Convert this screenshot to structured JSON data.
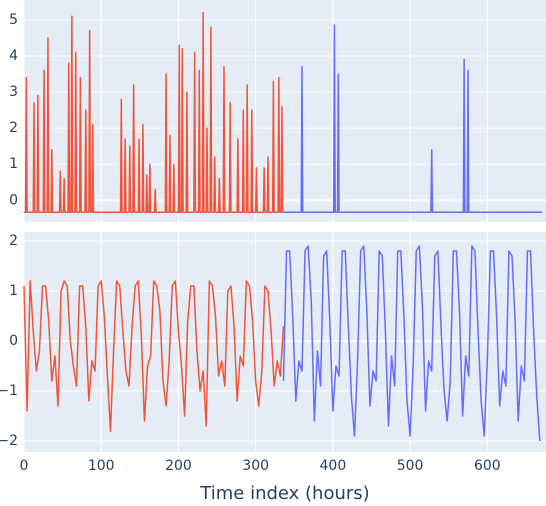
{
  "chart_data": [
    {
      "type": "line",
      "ylim": [
        -0.6,
        5.55
      ],
      "yticks": [
        0,
        1,
        2,
        3,
        4,
        5
      ],
      "xlim": [
        0,
        676
      ],
      "grid": true,
      "background": "#e5ecf6",
      "series": [
        {
          "color": "#ef553b",
          "x": [
            0,
            2,
            3,
            4,
            12,
            13,
            14,
            17,
            18,
            19,
            25,
            26,
            27,
            30,
            31,
            32,
            35,
            36,
            37,
            46,
            47,
            48,
            51,
            52,
            53,
            57,
            58,
            59,
            61,
            62,
            63,
            66,
            67,
            68,
            72,
            73,
            74,
            79,
            80,
            81,
            84,
            85,
            86,
            88,
            89,
            90,
            125,
            126,
            127,
            130,
            131,
            132,
            136,
            137,
            138,
            141,
            142,
            143,
            148,
            149,
            150,
            153,
            154,
            155,
            158,
            159,
            160,
            162,
            163,
            164,
            169,
            170,
            171,
            183,
            184,
            185,
            188,
            189,
            190,
            193,
            194,
            195,
            200,
            201,
            202,
            204,
            205,
            206,
            210,
            211,
            212,
            220,
            221,
            222,
            226,
            227,
            228,
            231,
            232,
            233,
            236,
            237,
            238,
            241,
            242,
            243,
            246,
            247,
            248,
            252,
            253,
            254,
            258,
            259,
            260,
            266,
            267,
            268,
            276,
            277,
            278,
            283,
            284,
            285,
            288,
            289,
            290,
            294,
            295,
            296,
            300,
            301,
            302,
            310,
            311,
            312,
            315,
            316,
            317,
            322,
            323,
            324,
            329,
            330,
            331,
            333,
            334,
            335,
            336
          ],
          "values": [
            -0.33,
            -0.33,
            3.4,
            -0.33,
            -0.33,
            2.7,
            -0.33,
            -0.33,
            2.9,
            -0.33,
            -0.33,
            3.6,
            -0.33,
            -0.33,
            4.5,
            -0.33,
            -0.33,
            1.4,
            -0.33,
            -0.33,
            0.8,
            -0.33,
            -0.33,
            0.6,
            -0.33,
            -0.33,
            3.8,
            -0.33,
            -0.33,
            5.1,
            -0.33,
            -0.33,
            4.1,
            -0.33,
            -0.33,
            3.4,
            -0.33,
            -0.33,
            2.5,
            -0.33,
            -0.33,
            4.7,
            -0.33,
            -0.33,
            2.1,
            -0.33,
            -0.33,
            2.8,
            -0.33,
            -0.33,
            1.7,
            -0.33,
            -0.33,
            1.5,
            -0.33,
            -0.33,
            3.2,
            -0.33,
            -0.33,
            1.7,
            -0.33,
            -0.33,
            2.1,
            -0.33,
            -0.33,
            0.7,
            -0.33,
            -0.33,
            1.0,
            -0.33,
            -0.33,
            0.3,
            -0.33,
            -0.33,
            3.5,
            -0.33,
            -0.33,
            1.8,
            -0.33,
            -0.33,
            1.0,
            -0.33,
            -0.33,
            4.3,
            -0.33,
            -0.33,
            4.2,
            -0.33,
            -0.33,
            3.0,
            -0.33,
            -0.33,
            4.1,
            -0.33,
            -0.33,
            3.6,
            -0.33,
            -0.33,
            5.2,
            -0.33,
            -0.33,
            2.0,
            -0.33,
            -0.33,
            4.8,
            -0.33,
            -0.33,
            1.2,
            -0.33,
            -0.33,
            0.6,
            -0.33,
            -0.33,
            3.7,
            -0.33,
            -0.33,
            2.7,
            -0.33,
            -0.33,
            1.7,
            -0.33,
            -0.33,
            2.5,
            -0.33,
            -0.33,
            3.2,
            -0.33,
            -0.33,
            2.5,
            -0.33,
            -0.33,
            0.9,
            -0.33,
            -0.33,
            0.9,
            -0.33,
            -0.33,
            1.2,
            -0.33,
            -0.33,
            3.3,
            -0.33,
            -0.33,
            3.4,
            -0.33,
            -0.33,
            2.6,
            -0.33,
            -0.33
          ]
        },
        {
          "color": "#636efa",
          "x": [
            336,
            359,
            360,
            361,
            401,
            402,
            403,
            406,
            407,
            408,
            527,
            528,
            529,
            569,
            570,
            571,
            574,
            575,
            576,
            671
          ],
          "values": [
            -0.33,
            -0.33,
            3.7,
            -0.33,
            -0.33,
            4.85,
            -0.33,
            -0.33,
            3.5,
            -0.33,
            -0.33,
            1.4,
            -0.33,
            -0.33,
            3.9,
            -0.33,
            -0.33,
            3.6,
            -0.33,
            -0.33
          ]
        }
      ]
    },
    {
      "type": "line",
      "ylim": [
        -2.22,
        2.18
      ],
      "yticks": [
        {
          "value": -2,
          "label": "−2"
        },
        {
          "value": -1,
          "label": "−1"
        },
        0,
        1,
        2
      ],
      "xlim": [
        0,
        676
      ],
      "xticks": [
        0,
        100,
        200,
        300,
        400,
        500,
        600
      ],
      "x_label": "Time index (hours)",
      "grid": true,
      "background": "#e5ecf6",
      "series": [
        {
          "color": "#ef553b",
          "x": [
            0,
            4,
            8,
            12,
            16,
            20,
            24,
            28,
            32,
            36,
            40,
            44,
            48,
            52,
            56,
            60,
            64,
            68,
            72,
            76,
            80,
            84,
            88,
            92,
            96,
            100,
            104,
            108,
            112,
            116,
            120,
            124,
            128,
            132,
            136,
            140,
            144,
            148,
            152,
            156,
            160,
            164,
            168,
            172,
            176,
            180,
            184,
            188,
            192,
            196,
            200,
            204,
            208,
            212,
            216,
            220,
            224,
            228,
            232,
            236,
            240,
            244,
            248,
            252,
            256,
            260,
            264,
            268,
            272,
            276,
            280,
            284,
            288,
            292,
            296,
            300,
            304,
            308,
            312,
            316,
            320,
            324,
            328,
            332,
            336
          ],
          "values": [
            1.1,
            -1.4,
            1.2,
            0.2,
            -0.6,
            -0.2,
            1.1,
            1.1,
            0.4,
            -0.8,
            -0.3,
            -1.3,
            1.0,
            1.2,
            1.1,
            0.0,
            -0.5,
            -0.9,
            1.1,
            1.1,
            0.3,
            -1.2,
            -0.4,
            -0.6,
            1.1,
            1.2,
            0.5,
            -0.7,
            -1.8,
            -0.2,
            1.2,
            1.1,
            0.2,
            -0.6,
            -0.9,
            0.3,
            1.1,
            1.2,
            0.1,
            -1.6,
            -0.5,
            -0.3,
            1.2,
            1.1,
            0.6,
            -0.8,
            -1.3,
            -0.4,
            1.1,
            1.2,
            0.2,
            -0.5,
            -1.5,
            0.4,
            1.1,
            1.1,
            -0.2,
            -1.0,
            -0.6,
            -1.7,
            1.2,
            1.1,
            0.5,
            -0.7,
            -0.4,
            -0.9,
            1.0,
            1.1,
            0.3,
            -1.2,
            -0.3,
            -0.5,
            1.2,
            1.1,
            0.4,
            -0.8,
            -1.3,
            -0.6,
            1.1,
            1.0,
            0.2,
            -0.9,
            -0.4,
            -0.7,
            0.3
          ]
        },
        {
          "color": "#636efa",
          "x": [
            336,
            340,
            344,
            348,
            352,
            356,
            360,
            364,
            368,
            372,
            376,
            380,
            384,
            388,
            392,
            396,
            400,
            404,
            408,
            412,
            416,
            420,
            424,
            428,
            432,
            436,
            440,
            444,
            448,
            452,
            456,
            460,
            464,
            468,
            472,
            476,
            480,
            484,
            488,
            492,
            496,
            500,
            504,
            508,
            512,
            516,
            520,
            524,
            528,
            532,
            536,
            540,
            544,
            548,
            552,
            556,
            560,
            564,
            568,
            572,
            576,
            580,
            584,
            588,
            592,
            596,
            600,
            604,
            608,
            612,
            616,
            620,
            624,
            628,
            632,
            636,
            640,
            644,
            648,
            652,
            656,
            660,
            664,
            668
          ],
          "values": [
            -0.8,
            1.8,
            1.8,
            0.5,
            -1.2,
            -0.4,
            -0.6,
            1.8,
            1.9,
            0.8,
            -1.6,
            -0.2,
            -0.9,
            1.7,
            1.8,
            0.4,
            -1.4,
            -0.5,
            -0.7,
            1.8,
            1.8,
            0.3,
            -1.1,
            -1.9,
            -0.4,
            1.8,
            1.9,
            0.6,
            -1.3,
            -0.6,
            -0.8,
            1.8,
            1.7,
            0.2,
            -1.7,
            -0.3,
            -0.9,
            1.8,
            1.8,
            0.5,
            -1.2,
            -1.9,
            -0.5,
            1.8,
            1.9,
            0.7,
            -1.4,
            -0.4,
            -0.6,
            1.7,
            1.8,
            0.3,
            -1.0,
            -1.6,
            -0.8,
            1.8,
            1.8,
            0.6,
            -1.5,
            -0.3,
            -0.7,
            1.9,
            1.8,
            0.2,
            -1.2,
            -1.9,
            -0.4,
            1.8,
            1.8,
            0.5,
            -1.3,
            -0.6,
            -0.9,
            1.8,
            1.7,
            0.4,
            -1.6,
            -0.5,
            -0.8,
            1.8,
            1.8,
            0.2,
            -1.1,
            -2.0
          ]
        }
      ]
    }
  ]
}
